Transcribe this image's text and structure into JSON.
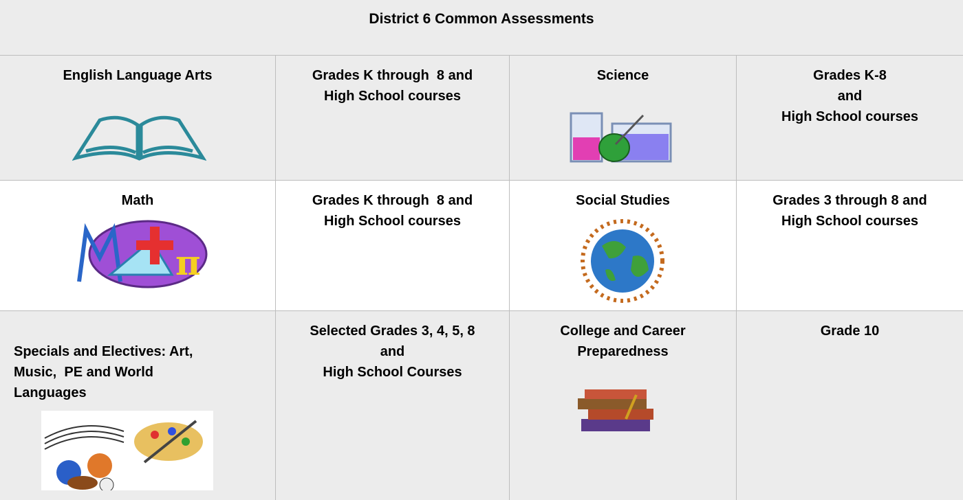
{
  "title": "District 6 Common Assessments",
  "rows": [
    [
      [
        "English Language Arts"
      ],
      [
        "Grades K through  8 and",
        "High School courses"
      ],
      [
        "Science"
      ],
      [
        "Grades K-8",
        "and",
        "High School courses"
      ]
    ],
    [
      [
        "Math"
      ],
      [
        "Grades K through  8 and",
        "High School courses"
      ],
      [
        "Social Studies"
      ],
      [
        "Grades 3 through 8 and",
        "High School courses"
      ]
    ],
    [
      [
        "Specials and Electives: Art,",
        "Music,  PE and World",
        "Languages"
      ],
      [
        "Selected Grades 3, 4, 5, 8",
        "and",
        "High School Courses"
      ],
      [
        "College and Career",
        "Preparedness"
      ],
      [
        "Grade 10"
      ]
    ]
  ]
}
